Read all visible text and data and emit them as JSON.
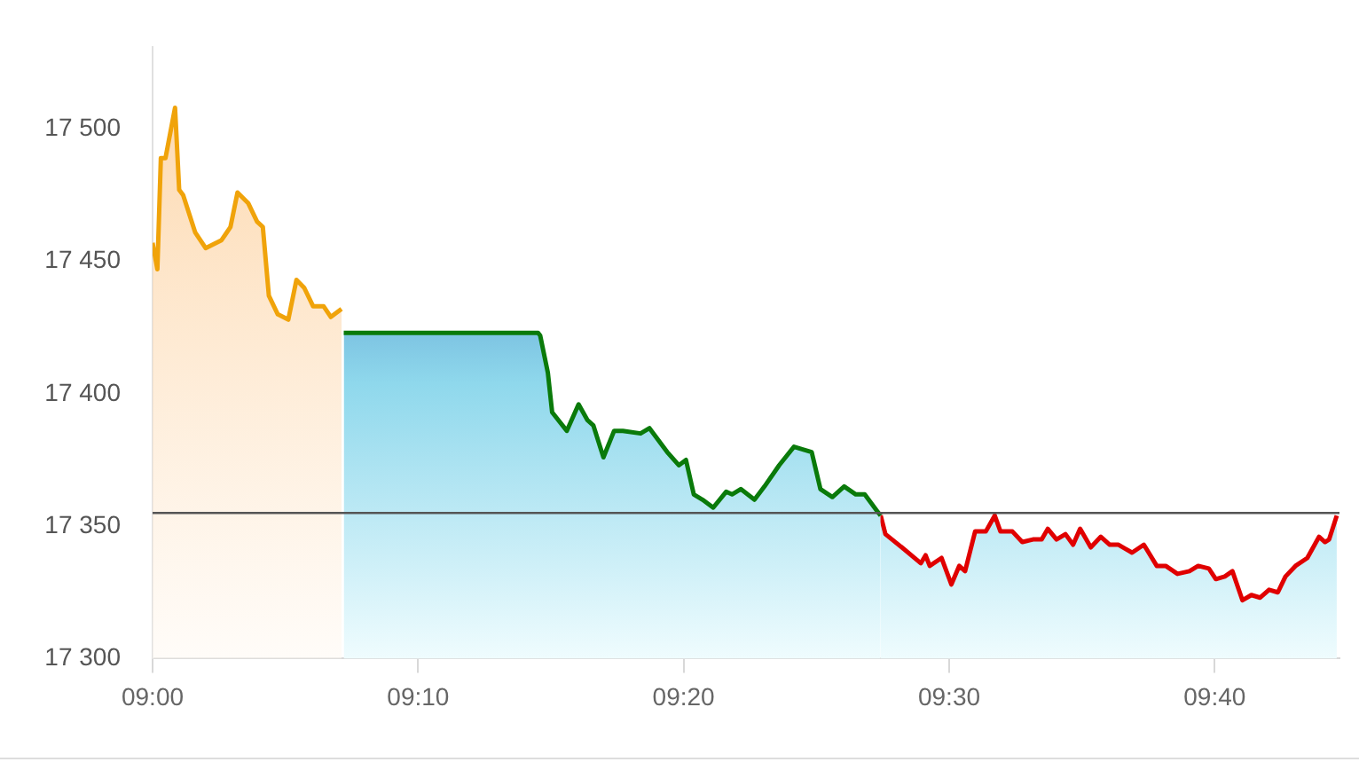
{
  "chart_data": {
    "type": "area",
    "xlim": [
      9,
      9.745
    ],
    "ylim": [
      17300,
      17531
    ],
    "xticks": [
      {
        "value": 9,
        "label": "09:00"
      },
      {
        "value": 9.16667,
        "label": "09:10"
      },
      {
        "value": 9.33333,
        "label": "09:20"
      },
      {
        "value": 9.5,
        "label": "09:30"
      },
      {
        "value": 9.66667,
        "label": "09:40"
      }
    ],
    "yticks": [
      {
        "value": 17300,
        "label": "17 300"
      },
      {
        "value": 17350,
        "label": "17 350"
      },
      {
        "value": 17400,
        "label": "17 400"
      },
      {
        "value": 17450,
        "label": "17 450"
      },
      {
        "value": 17500,
        "label": "17 500"
      }
    ],
    "grid": false,
    "legend": false,
    "marker": "none",
    "line_style": "solid",
    "ref_lines": [
      {
        "axis": "y",
        "value": 17355,
        "color": "#555555"
      }
    ],
    "series": [
      {
        "color": "#f0a30a",
        "x": [
          9.0,
          9.003,
          9.0052,
          9.0081,
          9.0141,
          9.0167,
          9.0192,
          9.0267,
          9.0333,
          9.0433,
          9.0489,
          9.0533,
          9.06,
          9.0656,
          9.0692,
          9.073,
          9.0786,
          9.0852,
          9.0903,
          9.0952,
          9.1008,
          9.1074,
          9.1119,
          9.1186
        ],
        "values": [
          17457,
          17447,
          17489,
          17489,
          17508,
          17477,
          17475,
          17461,
          17455,
          17458,
          17463,
          17476,
          17472,
          17465,
          17463,
          17437,
          17430,
          17428,
          17443,
          17440,
          17433,
          17433,
          17429,
          17432
        ]
      },
      {
        "color": "#0a7a0a",
        "x": [
          9.12,
          9.242,
          9.2433,
          9.2481,
          9.2508,
          9.26,
          9.2674,
          9.273,
          9.2767,
          9.283,
          9.2897,
          9.2952,
          9.3063,
          9.3119,
          9.323,
          9.3303,
          9.3348,
          9.3397,
          9.3452,
          9.3519,
          9.36,
          9.3637,
          9.3692,
          9.3778,
          9.3841,
          9.3933,
          9.4026,
          9.4081,
          9.4137,
          9.4192,
          9.4267,
          9.4341,
          9.4414,
          9.447,
          9.4544,
          9.457
        ],
        "values": [
          17423,
          17423,
          17422,
          17408,
          17393,
          17386,
          17396,
          17390,
          17388,
          17376,
          17386,
          17386,
          17385,
          17387,
          17378,
          17373,
          17375,
          17362,
          17360,
          17357,
          17363,
          17362,
          17364,
          17360,
          17365,
          17373,
          17380,
          17379,
          17378,
          17364,
          17361,
          17365,
          17362,
          17362,
          17356,
          17354
        ]
      },
      {
        "color": "#e00000",
        "x": [
          9.457,
          9.46,
          9.4703,
          9.4822,
          9.4852,
          9.4878,
          9.4952,
          9.5014,
          9.5063,
          9.51,
          9.5163,
          9.523,
          9.5286,
          9.5322,
          9.5397,
          9.5459,
          9.5526,
          9.5581,
          9.5619,
          9.5674,
          9.573,
          9.5778,
          9.5822,
          9.5889,
          9.5952,
          9.6008,
          9.6063,
          9.6148,
          9.6222,
          9.6303,
          9.6359,
          9.6433,
          9.6508,
          9.6563,
          9.663,
          9.6674,
          9.673,
          9.6778,
          9.6841,
          9.6897,
          9.6952,
          9.7008,
          9.7063,
          9.7111,
          9.7174,
          9.7248,
          9.7322,
          9.7359,
          9.7385,
          9.7433
        ],
        "values": [
          17354,
          17347,
          17342,
          17336,
          17339,
          17335,
          17338,
          17328,
          17335,
          17333,
          17348,
          17348,
          17354,
          17348,
          17348,
          17344,
          17345,
          17345,
          17349,
          17345,
          17347,
          17343,
          17349,
          17342,
          17346,
          17343,
          17343,
          17340,
          17343,
          17335,
          17335,
          17332,
          17333,
          17335,
          17334,
          17330,
          17331,
          17333,
          17322,
          17324,
          17323,
          17326,
          17325,
          17331,
          17335,
          17338,
          17346,
          17344,
          17345,
          17354
        ]
      }
    ]
  }
}
